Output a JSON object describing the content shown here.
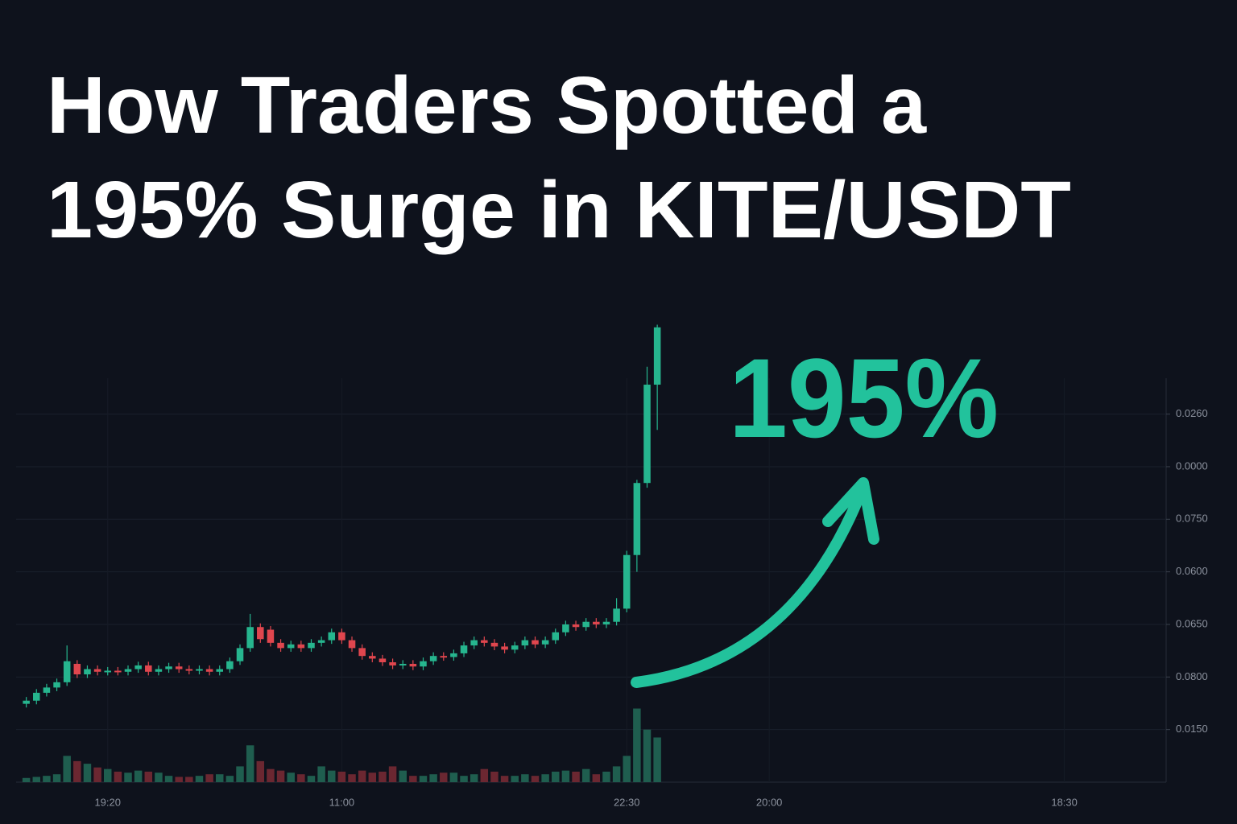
{
  "chart_data": {
    "type": "candlestick",
    "title": [
      "How Traders Spotted a",
      "195% Surge in KITE/USDT"
    ],
    "annotation": "195%",
    "x": [
      0,
      1,
      2,
      3,
      4,
      5,
      6,
      7,
      8,
      9,
      10,
      11,
      12,
      13,
      14,
      15,
      16,
      17,
      18,
      19,
      20,
      21,
      22,
      23,
      24,
      25,
      26,
      27,
      28,
      29,
      30,
      31,
      32,
      33,
      34,
      35,
      36,
      37,
      38,
      39,
      40,
      41,
      42,
      43,
      44,
      45,
      46,
      47,
      48,
      49,
      50,
      51,
      52,
      53,
      54,
      55,
      56,
      57,
      58,
      59,
      60,
      61,
      62
    ],
    "open": [
      1.49,
      1.55,
      1.7,
      1.8,
      1.9,
      2.25,
      2.05,
      2.15,
      2.1,
      2.12,
      2.1,
      2.15,
      2.22,
      2.1,
      2.15,
      2.2,
      2.15,
      2.12,
      2.15,
      2.1,
      2.15,
      2.3,
      2.55,
      2.95,
      2.9,
      2.65,
      2.55,
      2.62,
      2.55,
      2.65,
      2.7,
      2.85,
      2.7,
      2.55,
      2.4,
      2.35,
      2.28,
      2.22,
      2.25,
      2.2,
      2.3,
      2.4,
      2.38,
      2.45,
      2.6,
      2.7,
      2.65,
      2.58,
      2.52,
      2.6,
      2.7,
      2.62,
      2.7,
      2.85,
      3.0,
      2.95,
      3.05,
      3.0,
      3.05,
      3.3,
      4.32,
      5.69,
      7.56
    ],
    "high": [
      1.62,
      1.77,
      1.87,
      1.97,
      2.6,
      2.32,
      2.22,
      2.22,
      2.19,
      2.19,
      2.22,
      2.29,
      2.29,
      2.22,
      2.27,
      2.27,
      2.22,
      2.22,
      2.22,
      2.22,
      2.37,
      2.62,
      3.2,
      3.02,
      2.97,
      2.72,
      2.69,
      2.69,
      2.72,
      2.77,
      2.92,
      2.92,
      2.77,
      2.62,
      2.47,
      2.42,
      2.35,
      2.32,
      2.32,
      2.37,
      2.47,
      2.47,
      2.52,
      2.67,
      2.77,
      2.77,
      2.72,
      2.65,
      2.67,
      2.77,
      2.77,
      2.77,
      2.92,
      3.07,
      3.07,
      3.12,
      3.12,
      3.12,
      3.5,
      4.4,
      5.75,
      7.9,
      8.7
    ],
    "low": [
      1.42,
      1.48,
      1.63,
      1.73,
      1.83,
      1.98,
      1.98,
      2.03,
      2.03,
      2.03,
      2.03,
      2.08,
      2.03,
      2.03,
      2.08,
      2.08,
      2.05,
      2.05,
      2.03,
      2.03,
      2.08,
      2.23,
      2.48,
      2.65,
      2.58,
      2.48,
      2.48,
      2.48,
      2.48,
      2.58,
      2.63,
      2.63,
      2.48,
      2.33,
      2.28,
      2.21,
      2.15,
      2.15,
      2.13,
      2.13,
      2.23,
      2.31,
      2.31,
      2.38,
      2.53,
      2.58,
      2.51,
      2.45,
      2.45,
      2.53,
      2.55,
      2.55,
      2.63,
      2.78,
      2.88,
      2.88,
      2.93,
      2.93,
      2.98,
      3.23,
      4.0,
      5.6,
      6.7
    ],
    "close": [
      1.55,
      1.7,
      1.8,
      1.9,
      2.3,
      2.05,
      2.15,
      2.1,
      2.12,
      2.1,
      2.15,
      2.22,
      2.1,
      2.15,
      2.2,
      2.15,
      2.12,
      2.15,
      2.1,
      2.15,
      2.3,
      2.55,
      2.95,
      2.72,
      2.65,
      2.55,
      2.62,
      2.55,
      2.65,
      2.7,
      2.85,
      2.7,
      2.55,
      2.4,
      2.35,
      2.28,
      2.22,
      2.25,
      2.2,
      2.3,
      2.4,
      2.38,
      2.45,
      2.6,
      2.7,
      2.65,
      2.58,
      2.52,
      2.6,
      2.7,
      2.62,
      2.7,
      2.85,
      3.0,
      2.95,
      3.05,
      3.0,
      3.05,
      3.3,
      4.32,
      5.69,
      7.56,
      8.65
    ],
    "volume": [
      0.08,
      0.1,
      0.12,
      0.15,
      0.5,
      0.4,
      0.35,
      0.28,
      0.25,
      0.2,
      0.18,
      0.22,
      0.2,
      0.18,
      0.12,
      0.1,
      0.1,
      0.12,
      0.15,
      0.15,
      0.12,
      0.3,
      0.7,
      0.4,
      0.25,
      0.22,
      0.18,
      0.15,
      0.12,
      0.3,
      0.22,
      0.2,
      0.15,
      0.22,
      0.18,
      0.2,
      0.3,
      0.22,
      0.12,
      0.12,
      0.15,
      0.18,
      0.18,
      0.12,
      0.15,
      0.25,
      0.2,
      0.12,
      0.12,
      0.15,
      0.12,
      0.15,
      0.2,
      0.22,
      0.2,
      0.25,
      0.15,
      0.2,
      0.3,
      0.5,
      1.4,
      1.0,
      0.85
    ],
    "up_color": "#26b58e",
    "down_color": "#e0464e",
    "up_volume_color": "#1f5e4f",
    "down_volume_color": "#6b2731",
    "annotation_color": "#22c29c",
    "xlim": [
      -1,
      112
    ],
    "xticks": [
      {
        "value": 8,
        "label": "19:20"
      },
      {
        "value": 31,
        "label": "11:00"
      },
      {
        "value": 59,
        "label": "22:30"
      },
      {
        "value": 73,
        "label": "20:00"
      },
      {
        "value": 102,
        "label": "18:30"
      }
    ],
    "ylim": [
      0,
      8.8
    ],
    "yticks": [
      {
        "value": 1,
        "label": "0.0150"
      },
      {
        "value": 2,
        "label": "0.0800"
      },
      {
        "value": 3,
        "label": "0.0650"
      },
      {
        "value": 4,
        "label": "0.0600"
      },
      {
        "value": 5,
        "label": "0.0750"
      },
      {
        "value": 6,
        "label": "0.0000"
      },
      {
        "value": 7,
        "label": "0.0260"
      }
    ],
    "grid": true
  }
}
